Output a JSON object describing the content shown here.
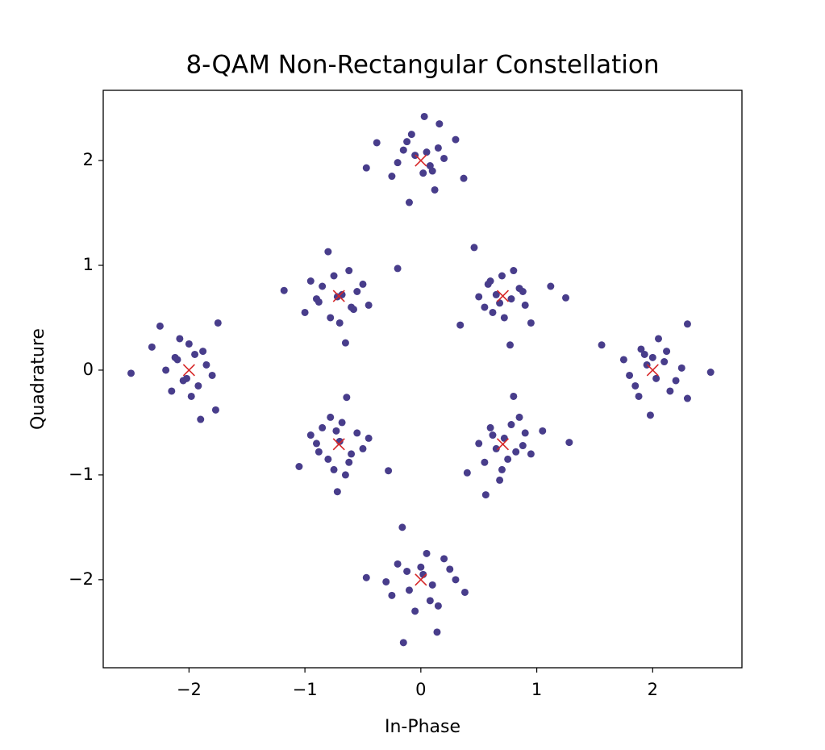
{
  "chart_data": {
    "type": "scatter",
    "title": "8-QAM Non-Rectangular Constellation",
    "x_label": "In-Phase",
    "y_label": "Quadrature",
    "xlim": [
      -2.74,
      2.77
    ],
    "ylim": [
      -2.84,
      2.67
    ],
    "xticks": [
      {
        "value": -2,
        "label": "−2"
      },
      {
        "value": -1,
        "label": "−1"
      },
      0,
      1,
      2
    ],
    "yticks": [
      {
        "value": -2,
        "label": "−2"
      },
      {
        "value": -1,
        "label": "−1"
      },
      0,
      1,
      2
    ],
    "grid": false,
    "series": [
      {
        "color": "#483d8b",
        "marker": "o",
        "x": [
          0.03,
          -0.1,
          0.37,
          -0.47,
          -0.38,
          0.16,
          0.3,
          -0.25,
          0.12,
          -0.05,
          0.08,
          -0.15,
          0.2,
          0.02,
          -0.08,
          0.15,
          -0.2,
          0.05,
          0.1,
          -0.12
        ],
        "y": [
          2.42,
          1.6,
          1.83,
          1.93,
          2.17,
          2.35,
          2.2,
          1.85,
          1.72,
          2.05,
          1.95,
          2.1,
          2.02,
          1.88,
          2.25,
          2.12,
          1.98,
          2.08,
          1.9,
          2.18
        ]
      },
      {
        "color": "#483d8b",
        "marker": "o",
        "x": [
          0.46,
          0.34,
          0.77,
          1.25,
          1.12,
          0.55,
          0.6,
          0.8,
          0.9,
          0.65,
          0.72,
          0.85,
          0.5,
          0.95,
          0.7,
          0.62,
          0.78,
          0.58,
          0.88,
          0.68
        ],
        "y": [
          1.17,
          0.43,
          0.24,
          0.69,
          0.8,
          0.6,
          0.85,
          0.95,
          0.62,
          0.72,
          0.5,
          0.78,
          0.7,
          0.45,
          0.9,
          0.55,
          0.68,
          0.82,
          0.75,
          0.64
        ]
      },
      {
        "color": "#483d8b",
        "marker": "o",
        "x": [
          1.56,
          2.5,
          2.3,
          1.98,
          2.3,
          1.75,
          1.85,
          1.9,
          2.1,
          2.2,
          2.05,
          1.95,
          2.15,
          1.8,
          2.0,
          2.12,
          1.88,
          2.25,
          2.03,
          1.93
        ],
        "y": [
          0.24,
          -0.02,
          0.44,
          -0.43,
          -0.27,
          0.1,
          -0.15,
          0.2,
          0.08,
          -0.1,
          0.3,
          0.05,
          -0.2,
          -0.05,
          0.12,
          0.18,
          -0.25,
          0.02,
          -0.08,
          0.15
        ]
      },
      {
        "color": "#483d8b",
        "marker": "o",
        "x": [
          0.56,
          0.8,
          1.28,
          0.4,
          0.6,
          0.75,
          0.9,
          0.65,
          0.85,
          0.5,
          0.7,
          0.95,
          0.62,
          0.78,
          0.55,
          0.88,
          0.68,
          0.72,
          1.05,
          0.82
        ],
        "y": [
          -1.19,
          -0.25,
          -0.69,
          -0.98,
          -0.55,
          -0.85,
          -0.6,
          -0.75,
          -0.45,
          -0.7,
          -0.95,
          -0.8,
          -0.62,
          -0.52,
          -0.88,
          -0.72,
          -1.05,
          -0.65,
          -0.58,
          -0.78
        ]
      },
      {
        "color": "#483d8b",
        "marker": "o",
        "x": [
          -0.15,
          0.14,
          -0.16,
          0.38,
          -0.47,
          -0.2,
          -0.1,
          0.05,
          0.15,
          0.25,
          -0.05,
          0.1,
          -0.25,
          0.2,
          0.02,
          -0.12,
          0.08,
          -0.3,
          0.3,
          0.0
        ],
        "y": [
          -2.6,
          -2.5,
          -1.5,
          -2.12,
          -1.98,
          -1.85,
          -2.1,
          -1.75,
          -2.25,
          -1.9,
          -2.3,
          -2.05,
          -2.15,
          -1.8,
          -1.95,
          -1.92,
          -2.2,
          -2.02,
          -2.0,
          -1.88
        ]
      },
      {
        "color": "#483d8b",
        "marker": "o",
        "x": [
          -0.72,
          -0.28,
          -0.64,
          -1.05,
          -0.85,
          -0.6,
          -0.75,
          -0.9,
          -0.55,
          -0.8,
          -0.68,
          -0.5,
          -0.95,
          -0.7,
          -0.62,
          -0.78,
          -0.45,
          -0.88,
          -0.65,
          -0.73
        ],
        "y": [
          -1.16,
          -0.96,
          -0.26,
          -0.92,
          -0.55,
          -0.8,
          -0.95,
          -0.7,
          -0.6,
          -0.85,
          -0.5,
          -0.75,
          -0.62,
          -0.68,
          -0.88,
          -0.45,
          -0.65,
          -0.78,
          -1.0,
          -0.58
        ]
      },
      {
        "color": "#483d8b",
        "marker": "o",
        "x": [
          -2.5,
          -1.75,
          -1.9,
          -2.32,
          -1.77,
          -2.25,
          -2.1,
          -1.95,
          -2.05,
          -2.15,
          -1.85,
          -2.0,
          -1.92,
          -2.2,
          -1.8,
          -2.08,
          -1.98,
          -2.12,
          -1.88,
          -2.02
        ],
        "y": [
          -0.03,
          0.45,
          -0.47,
          0.22,
          -0.38,
          0.42,
          0.1,
          0.15,
          -0.1,
          -0.2,
          0.05,
          0.25,
          -0.15,
          0.0,
          -0.05,
          0.3,
          -0.25,
          0.12,
          0.18,
          -0.08
        ]
      },
      {
        "color": "#483d8b",
        "marker": "o",
        "x": [
          -0.8,
          -1.18,
          -0.2,
          -0.65,
          -1.0,
          -0.85,
          -0.6,
          -0.75,
          -0.9,
          -0.55,
          -0.7,
          -0.45,
          -0.95,
          -0.68,
          -0.62,
          -0.78,
          -0.5,
          -0.88,
          -0.72,
          -0.58
        ],
        "y": [
          1.13,
          0.76,
          0.97,
          0.26,
          0.55,
          0.8,
          0.6,
          0.9,
          0.68,
          0.75,
          0.45,
          0.62,
          0.85,
          0.72,
          0.95,
          0.5,
          0.82,
          0.65,
          0.7,
          0.58
        ]
      },
      {
        "color": "#d62728",
        "marker": "x",
        "x": [
          0,
          0.707,
          2,
          0.707,
          0,
          -0.707,
          -2,
          -0.707
        ],
        "y": [
          2,
          0.707,
          0,
          -0.707,
          -2,
          -0.707,
          0,
          0.707
        ]
      }
    ]
  }
}
